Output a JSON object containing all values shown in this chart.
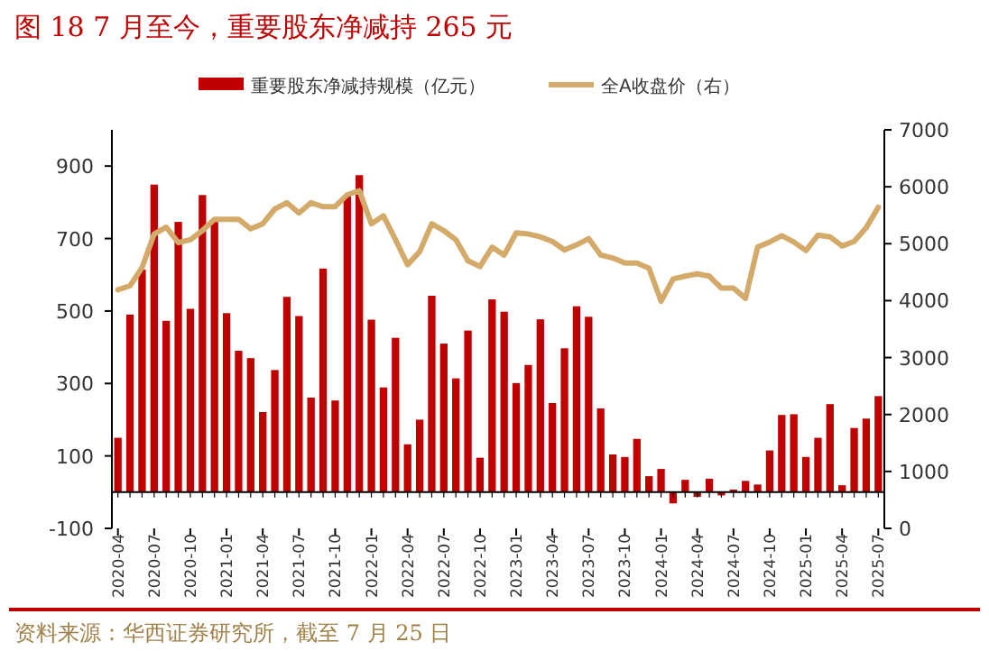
{
  "chart_data": {
    "type": "bar",
    "title": "图 18 7 月至今，重要股东净减持 265 元",
    "categories": [
      "2020-04",
      null,
      null,
      "2020-07",
      null,
      null,
      "2020-10",
      null,
      null,
      "2021-01",
      null,
      null,
      "2021-04",
      null,
      null,
      "2021-07",
      null,
      null,
      "2021-10",
      null,
      null,
      "2022-01",
      null,
      null,
      "2022-04",
      null,
      null,
      "2022-07",
      null,
      null,
      "2022-10",
      null,
      null,
      "2023-01",
      null,
      null,
      "2023-04",
      null,
      null,
      "2023-07",
      null,
      null,
      "2023-10",
      null,
      null,
      "2024-01",
      null,
      null,
      "2024-04",
      null,
      null,
      "2024-07",
      null,
      null,
      "2024-10",
      null,
      null,
      "2025-01",
      null,
      null,
      "2025-04",
      null,
      null,
      "2025-07"
    ],
    "series": [
      {
        "name": "重要股东净减持规模（亿元）",
        "color": "#c00000",
        "values": [
          150,
          490,
          614,
          849,
          473,
          746,
          506,
          820,
          746,
          494,
          390,
          370,
          221,
          337,
          539,
          486,
          261,
          617,
          253,
          817,
          875,
          476,
          289,
          426,
          132,
          200,
          542,
          410,
          314,
          446,
          95,
          532,
          498,
          301,
          351,
          477,
          246,
          397,
          513,
          484,
          231,
          104,
          97,
          147,
          44,
          64,
          -31,
          34,
          -13,
          37,
          -9,
          7,
          31,
          21,
          115,
          213,
          215,
          97,
          150,
          243,
          19,
          177,
          203,
          265
        ]
      },
      {
        "name": "全A收盘价（右）",
        "type": "line",
        "axis": "y2",
        "color": "#d4aa6a",
        "values": [
          4190,
          4260,
          4580,
          5170,
          5290,
          5020,
          5070,
          5230,
          5430,
          5430,
          5430,
          5260,
          5350,
          5610,
          5720,
          5540,
          5720,
          5650,
          5650,
          5860,
          5930,
          5350,
          5490,
          5070,
          4630,
          4860,
          5350,
          5230,
          5070,
          4700,
          4600,
          4940,
          4800,
          5190,
          5170,
          5120,
          5040,
          4890,
          4980,
          5090,
          4800,
          4750,
          4660,
          4660,
          4570,
          3990,
          4380,
          4430,
          4470,
          4430,
          4220,
          4220,
          4040,
          4940,
          5030,
          5140,
          5030,
          4880,
          5150,
          5120,
          4960,
          5040,
          5280,
          5640
        ]
      }
    ],
    "ylim": [
      -100,
      1000
    ],
    "yticks": [
      -100,
      100,
      300,
      500,
      700,
      900
    ],
    "y2lim": [
      0,
      7000
    ],
    "y2ticks": [
      0,
      1000,
      2000,
      3000,
      4000,
      5000,
      6000,
      7000
    ],
    "legend": "top",
    "annotations": [
      "资料来源：华西证券研究所，截至 7 月 25 日"
    ]
  }
}
